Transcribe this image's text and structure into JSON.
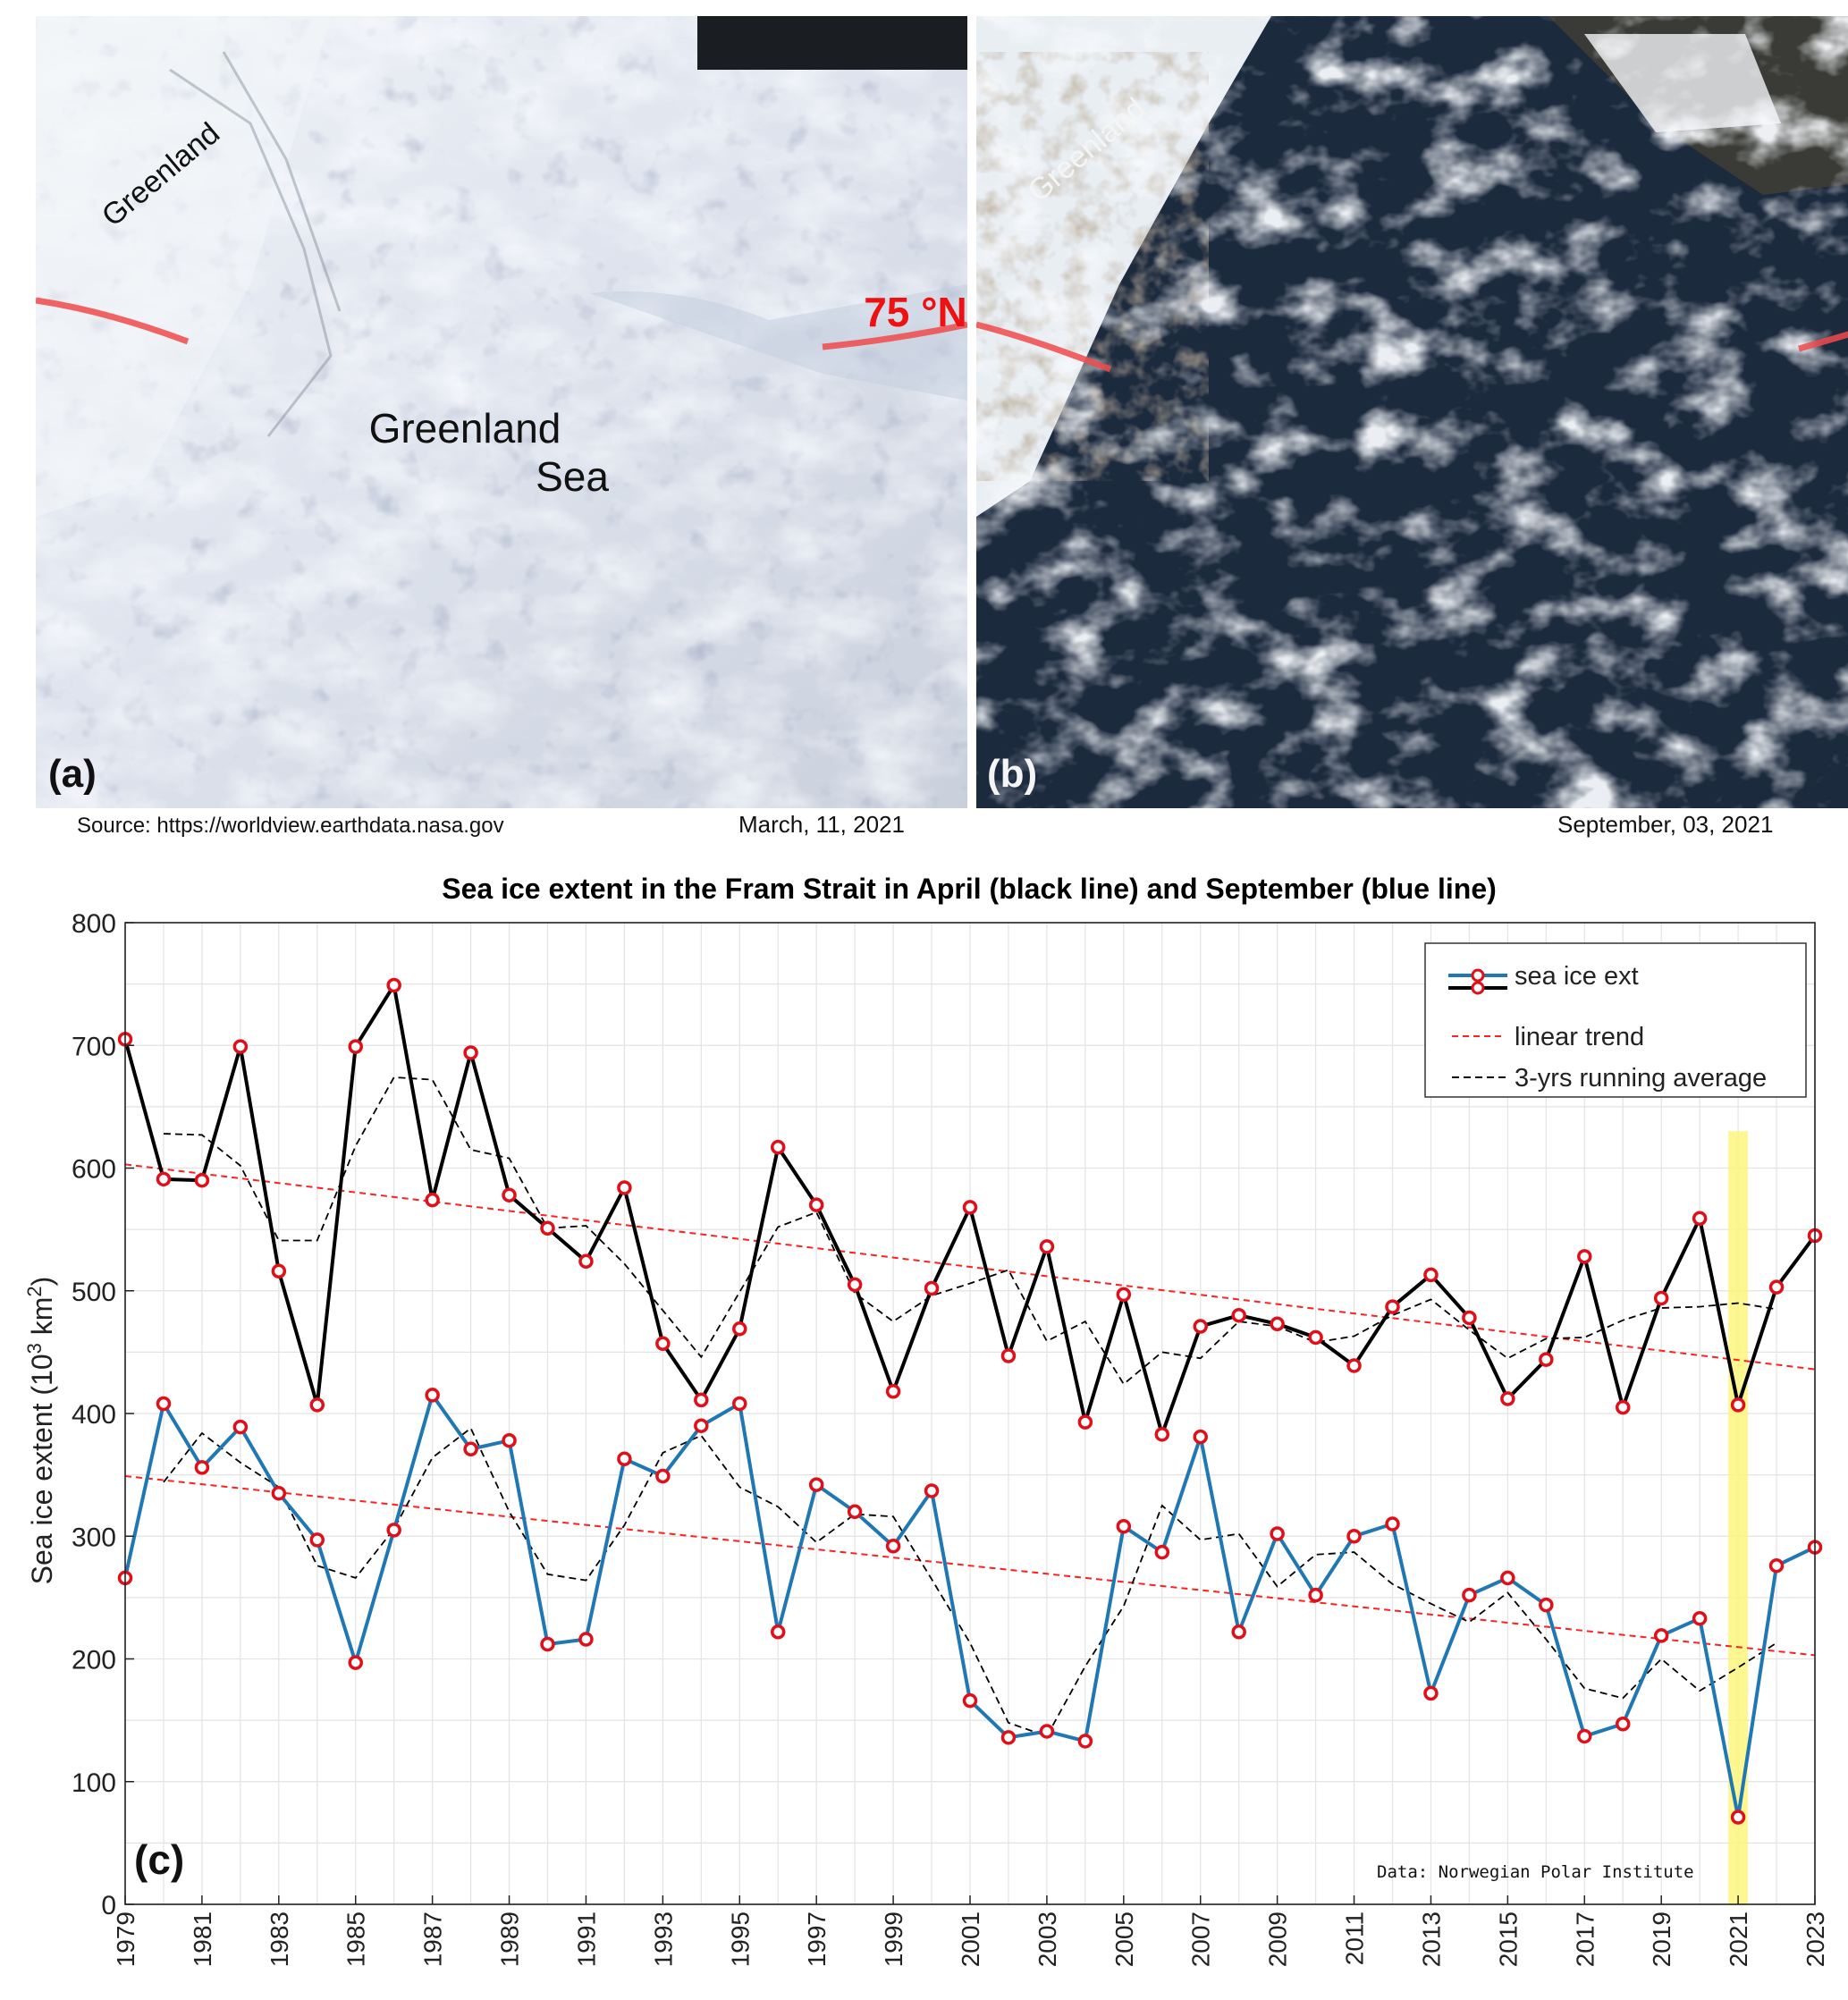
{
  "panels": {
    "a": {
      "letter": "(a)",
      "labels": {
        "greenland": "Greenland",
        "sea_line1": "Greenland",
        "sea_line2": "Sea",
        "latitude": "75 °N"
      },
      "source": "Source: https://worldview.earthdata.nasa.gov",
      "date": "March, 11, 2021"
    },
    "b": {
      "letter": "(b)",
      "labels": {
        "greenland": "Greenland"
      },
      "date": "September, 03, 2021"
    }
  },
  "chart_data": {
    "type": "line",
    "title": "Sea ice extent in the Fram Strait in April (black line) and September (blue line)",
    "xlabel": "",
    "ylabel_main": "Sea ice extent (10",
    "ylabel_sup1": "3",
    "ylabel_mid": " km",
    "ylabel_sup2": "2",
    "ylabel_end": ")",
    "panel_letter": "(c)",
    "credit": "Data: Norwegian Polar Institute",
    "xlim": [
      1979,
      2023
    ],
    "ylim": [
      0,
      800
    ],
    "x_ticks": [
      1979,
      1981,
      1983,
      1985,
      1987,
      1989,
      1991,
      1993,
      1995,
      1997,
      1999,
      2001,
      2003,
      2005,
      2007,
      2009,
      2011,
      2013,
      2015,
      2017,
      2019,
      2021,
      2023
    ],
    "y_ticks": [
      0,
      100,
      200,
      300,
      400,
      500,
      600,
      700,
      800
    ],
    "grid": true,
    "legend_position": "top-right",
    "legend": [
      "sea ice ext",
      "linear trend",
      "3-yrs running average"
    ],
    "highlight_year": 2021,
    "colors": {
      "april": "#000000",
      "september": "#1f77b4",
      "marker": "#e0101a",
      "trend": "#ff2020",
      "running": "#000000",
      "highlight": "#fbf67c"
    },
    "x": [
      1979,
      1980,
      1981,
      1982,
      1983,
      1984,
      1985,
      1986,
      1987,
      1988,
      1989,
      1990,
      1991,
      1992,
      1993,
      1994,
      1995,
      1996,
      1997,
      1998,
      1999,
      2000,
      2001,
      2002,
      2003,
      2004,
      2005,
      2006,
      2007,
      2008,
      2009,
      2010,
      2011,
      2012,
      2013,
      2014,
      2015,
      2016,
      2017,
      2018,
      2019,
      2020,
      2021,
      2022,
      2023
    ],
    "series": [
      {
        "name": "April",
        "values": [
          705,
          591,
          590,
          699,
          516,
          407,
          699,
          749,
          574,
          694,
          578,
          551,
          524,
          584,
          457,
          411,
          469,
          617,
          570,
          505,
          418,
          502,
          568,
          447,
          536,
          393,
          497,
          383,
          471,
          480,
          473,
          462,
          439,
          487,
          513,
          478,
          412,
          444,
          528,
          405,
          494,
          559,
          407,
          503,
          545
        ],
        "trend": [
          603,
          436
        ],
        "running": [
          null,
          628,
          627,
          602,
          541,
          541,
          618,
          674,
          672,
          615,
          608,
          551,
          553,
          522,
          484,
          446,
          499,
          552,
          564,
          498,
          475,
          496,
          506,
          517,
          459,
          475,
          424,
          450,
          445,
          475,
          471,
          458,
          463,
          480,
          493,
          468,
          445,
          461,
          462,
          476,
          486,
          487,
          490,
          485,
          null
        ]
      },
      {
        "name": "September",
        "values": [
          266,
          408,
          356,
          389,
          335,
          297,
          197,
          305,
          415,
          371,
          378,
          212,
          216,
          363,
          349,
          390,
          408,
          222,
          342,
          320,
          292,
          337,
          166,
          136,
          141,
          133,
          308,
          287,
          381,
          222,
          302,
          252,
          300,
          310,
          172,
          252,
          266,
          244,
          137,
          147,
          219,
          233,
          71,
          276,
          291
        ],
        "trend": [
          349,
          203
        ],
        "running": [
          null,
          344,
          384,
          360,
          340,
          276,
          266,
          306,
          364,
          388,
          320,
          269,
          264,
          309,
          368,
          382,
          340,
          324,
          295,
          318,
          316,
          265,
          213,
          148,
          137,
          194,
          243,
          325,
          297,
          302,
          259,
          285,
          287,
          261,
          245,
          230,
          254,
          216,
          176,
          168,
          200,
          174,
          193,
          213,
          null
        ]
      }
    ]
  }
}
